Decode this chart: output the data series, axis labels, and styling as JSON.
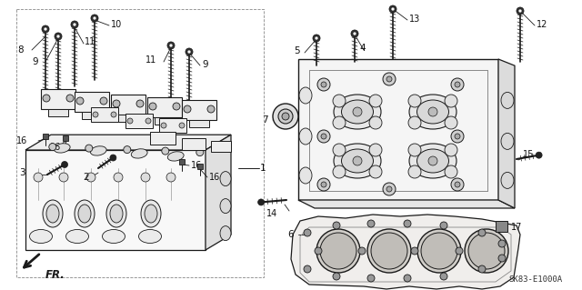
{
  "background_color": "#ffffff",
  "diagram_code": "SK83-E1000A",
  "fr_label": "FR.",
  "line_color": "#1a1a1a",
  "label_color": "#111111",
  "font_size": 7.5
}
